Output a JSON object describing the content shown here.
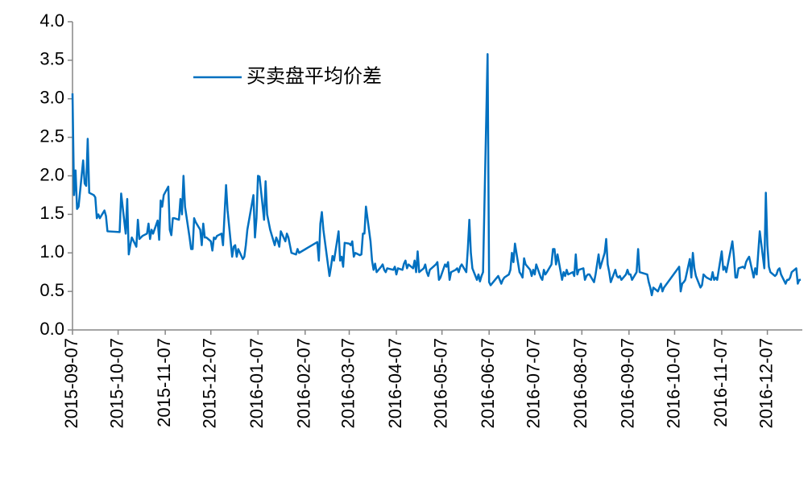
{
  "chart_data": {
    "type": "line",
    "x": [
      "2015-09-07",
      "2015-09-08",
      "2015-09-09",
      "2015-09-10",
      "2015-09-11",
      "2015-09-14",
      "2015-09-15",
      "2015-09-16",
      "2015-09-17",
      "2015-09-18",
      "2015-09-21",
      "2015-09-22",
      "2015-09-23",
      "2015-09-24",
      "2015-09-25",
      "2015-09-28",
      "2015-09-29",
      "2015-09-30",
      "2015-10-08",
      "2015-10-09",
      "2015-10-12",
      "2015-10-13",
      "2015-10-14",
      "2015-10-15",
      "2015-10-16",
      "2015-10-19",
      "2015-10-20",
      "2015-10-21",
      "2015-10-22",
      "2015-10-23",
      "2015-10-26",
      "2015-10-27",
      "2015-10-28",
      "2015-10-29",
      "2015-10-30",
      "2015-11-02",
      "2015-11-03",
      "2015-11-04",
      "2015-11-05",
      "2015-11-06",
      "2015-11-09",
      "2015-11-10",
      "2015-11-11",
      "2015-11-12",
      "2015-11-13",
      "2015-11-16",
      "2015-11-17",
      "2015-11-18",
      "2015-11-19",
      "2015-11-20",
      "2015-11-23",
      "2015-11-24",
      "2015-11-25",
      "2015-11-26",
      "2015-11-27",
      "2015-11-30",
      "2015-12-01",
      "2015-12-02",
      "2015-12-03",
      "2015-12-04",
      "2015-12-07",
      "2015-12-08",
      "2015-12-09",
      "2015-12-10",
      "2015-12-11",
      "2015-12-14",
      "2015-12-15",
      "2015-12-16",
      "2015-12-17",
      "2015-12-18",
      "2015-12-21",
      "2015-12-22",
      "2015-12-23",
      "2015-12-24",
      "2015-12-25",
      "2015-12-28",
      "2015-12-29",
      "2015-12-30",
      "2015-12-31",
      "2016-01-04",
      "2016-01-05",
      "2016-01-06",
      "2016-01-07",
      "2016-01-08",
      "2016-01-11",
      "2016-01-12",
      "2016-01-13",
      "2016-01-14",
      "2016-01-15",
      "2016-01-18",
      "2016-01-19",
      "2016-01-20",
      "2016-01-21",
      "2016-01-22",
      "2016-01-25",
      "2016-01-26",
      "2016-01-27",
      "2016-01-28",
      "2016-01-29",
      "2016-02-01",
      "2016-02-02",
      "2016-02-03",
      "2016-02-15",
      "2016-02-16",
      "2016-02-17",
      "2016-02-18",
      "2016-02-19",
      "2016-02-22",
      "2016-02-23",
      "2016-02-24",
      "2016-02-25",
      "2016-02-26",
      "2016-02-29",
      "2016-03-01",
      "2016-03-02",
      "2016-03-03",
      "2016-03-04",
      "2016-03-07",
      "2016-03-08",
      "2016-03-09",
      "2016-03-10",
      "2016-03-11",
      "2016-03-14",
      "2016-03-15",
      "2016-03-16",
      "2016-03-17",
      "2016-03-18",
      "2016-03-21",
      "2016-03-22",
      "2016-03-23",
      "2016-03-24",
      "2016-03-25",
      "2016-03-28",
      "2016-03-29",
      "2016-03-30",
      "2016-03-31",
      "2016-04-01",
      "2016-04-05",
      "2016-04-06",
      "2016-04-07",
      "2016-04-08",
      "2016-04-11",
      "2016-04-12",
      "2016-04-13",
      "2016-04-14",
      "2016-04-15",
      "2016-04-18",
      "2016-04-19",
      "2016-04-20",
      "2016-04-21",
      "2016-04-22",
      "2016-04-25",
      "2016-04-26",
      "2016-04-27",
      "2016-04-28",
      "2016-04-29",
      "2016-05-03",
      "2016-05-04",
      "2016-05-05",
      "2016-05-06",
      "2016-05-09",
      "2016-05-10",
      "2016-05-11",
      "2016-05-12",
      "2016-05-13",
      "2016-05-16",
      "2016-05-17",
      "2016-05-18",
      "2016-05-19",
      "2016-05-20",
      "2016-05-23",
      "2016-05-24",
      "2016-05-25",
      "2016-05-26",
      "2016-05-27",
      "2016-05-30",
      "2016-05-31",
      "2016-06-01",
      "2016-06-02",
      "2016-06-03",
      "2016-06-06",
      "2016-06-07",
      "2016-06-08",
      "2016-06-13",
      "2016-06-14",
      "2016-06-15",
      "2016-06-16",
      "2016-06-17",
      "2016-06-20",
      "2016-06-21",
      "2016-06-22",
      "2016-06-23",
      "2016-06-24",
      "2016-06-27",
      "2016-06-28",
      "2016-06-29",
      "2016-06-30",
      "2016-07-01",
      "2016-07-04",
      "2016-07-05",
      "2016-07-06",
      "2016-07-07",
      "2016-07-08",
      "2016-07-11",
      "2016-07-12",
      "2016-07-13",
      "2016-07-14",
      "2016-07-15",
      "2016-07-18",
      "2016-07-19",
      "2016-07-20",
      "2016-07-21",
      "2016-07-22",
      "2016-07-25",
      "2016-07-26",
      "2016-07-27",
      "2016-07-28",
      "2016-07-29",
      "2016-08-01",
      "2016-08-02",
      "2016-08-03",
      "2016-08-04",
      "2016-08-05",
      "2016-08-08",
      "2016-08-09",
      "2016-08-10",
      "2016-08-11",
      "2016-08-12",
      "2016-08-15",
      "2016-08-16",
      "2016-08-17",
      "2016-08-18",
      "2016-08-19",
      "2016-08-22",
      "2016-08-23",
      "2016-08-24",
      "2016-08-25",
      "2016-08-26",
      "2016-08-29",
      "2016-08-30",
      "2016-08-31",
      "2016-09-01",
      "2016-09-02",
      "2016-09-05",
      "2016-09-06",
      "2016-09-07",
      "2016-09-08",
      "2016-09-09",
      "2016-09-12",
      "2016-09-13",
      "2016-09-14",
      "2016-09-19",
      "2016-09-20",
      "2016-09-21",
      "2016-09-22",
      "2016-09-23",
      "2016-09-26",
      "2016-09-27",
      "2016-09-28",
      "2016-09-29",
      "2016-09-30",
      "2016-10-10",
      "2016-10-11",
      "2016-10-12",
      "2016-10-13",
      "2016-10-14",
      "2016-10-17",
      "2016-10-18",
      "2016-10-19",
      "2016-10-20",
      "2016-10-21",
      "2016-10-24",
      "2016-10-25",
      "2016-10-26",
      "2016-10-27",
      "2016-10-28",
      "2016-10-31",
      "2016-11-01",
      "2016-11-02",
      "2016-11-03",
      "2016-11-04",
      "2016-11-07",
      "2016-11-08",
      "2016-11-09",
      "2016-11-10",
      "2016-11-11",
      "2016-11-14",
      "2016-11-15",
      "2016-11-16",
      "2016-11-17",
      "2016-11-18",
      "2016-11-21",
      "2016-11-22",
      "2016-11-23",
      "2016-11-24",
      "2016-11-25",
      "2016-11-28",
      "2016-11-29",
      "2016-11-30",
      "2016-12-01",
      "2016-12-02",
      "2016-12-05",
      "2016-12-06",
      "2016-12-07",
      "2016-12-08",
      "2016-12-09",
      "2016-12-12",
      "2016-12-13",
      "2016-12-14",
      "2016-12-15",
      "2016-12-16",
      "2016-12-19",
      "2016-12-20",
      "2016-12-21",
      "2016-12-22",
      "2016-12-23",
      "2016-12-26",
      "2016-12-27",
      "2016-12-28",
      "2016-12-29"
    ],
    "series": [
      {
        "name": "买卖盘平均价差",
        "color": "#0070c0",
        "values": [
          3.07,
          1.75,
          2.07,
          1.57,
          1.6,
          2.2,
          1.9,
          1.87,
          2.48,
          1.78,
          1.75,
          1.72,
          1.45,
          1.5,
          1.45,
          1.55,
          1.48,
          1.28,
          1.27,
          1.77,
          1.25,
          1.7,
          0.98,
          1.1,
          1.2,
          1.08,
          1.43,
          1.18,
          1.2,
          1.22,
          1.25,
          1.38,
          1.18,
          1.3,
          1.25,
          1.42,
          1.17,
          1.68,
          1.6,
          1.75,
          1.86,
          1.3,
          1.23,
          1.45,
          1.45,
          1.43,
          1.7,
          1.5,
          2.0,
          1.6,
          1.2,
          1.05,
          1.05,
          1.45,
          1.4,
          1.3,
          1.1,
          1.38,
          1.2,
          1.2,
          1.15,
          1.03,
          1.2,
          1.18,
          1.22,
          1.25,
          1.1,
          1.5,
          1.88,
          1.55,
          0.95,
          1.08,
          1.1,
          0.95,
          1.05,
          0.92,
          0.95,
          1.1,
          1.3,
          1.75,
          1.2,
          1.45,
          2.0,
          1.99,
          1.43,
          1.93,
          1.5,
          1.4,
          1.3,
          1.1,
          1.2,
          1.15,
          1.08,
          1.28,
          1.15,
          1.25,
          1.2,
          1.1,
          1.0,
          0.98,
          1.05,
          1.0,
          1.14,
          0.9,
          1.38,
          1.53,
          1.3,
          0.85,
          0.7,
          0.82,
          0.96,
          0.9,
          1.28,
          0.9,
          0.95,
          0.82,
          1.13,
          1.12,
          1.1,
          1.15,
          0.95,
          1.0,
          0.97,
          0.98,
          1.25,
          1.25,
          1.6,
          1.15,
          0.9,
          0.78,
          0.86,
          0.75,
          0.82,
          0.85,
          0.78,
          0.75,
          0.8,
          0.78,
          0.82,
          0.72,
          0.8,
          0.78,
          0.86,
          0.9,
          0.8,
          0.85,
          0.8,
          0.9,
          0.75,
          1.02,
          0.75,
          0.8,
          0.85,
          0.75,
          0.7,
          0.78,
          0.85,
          0.88,
          0.65,
          0.68,
          0.85,
          0.82,
          0.88,
          0.65,
          0.75,
          0.78,
          0.8,
          0.75,
          0.82,
          0.85,
          0.75,
          1.05,
          1.43,
          1.0,
          0.8,
          0.65,
          0.72,
          0.63,
          0.7,
          0.75,
          3.58,
          0.62,
          0.58,
          0.7,
          0.65,
          0.6,
          0.65,
          0.68,
          0.72,
          0.78,
          1.0,
          0.88,
          1.12,
          0.75,
          0.72,
          0.68,
          0.93,
          0.85,
          0.78,
          0.7,
          0.78,
          0.72,
          0.85,
          0.68,
          0.65,
          0.78,
          0.72,
          0.75,
          0.85,
          1.05,
          1.05,
          0.85,
          0.98,
          0.65,
          0.75,
          0.7,
          0.78,
          0.72,
          0.75,
          0.7,
          0.98,
          0.72,
          0.78,
          0.8,
          0.65,
          0.7,
          0.72,
          0.72,
          0.62,
          0.72,
          0.85,
          0.98,
          0.8,
          1.0,
          1.18,
          0.85,
          0.75,
          0.62,
          0.78,
          0.7,
          0.68,
          0.7,
          0.65,
          0.72,
          0.78,
          0.72,
          0.72,
          0.65,
          0.75,
          1.05,
          0.75,
          0.72,
          0.62,
          0.55,
          0.45,
          0.55,
          0.5,
          0.55,
          0.6,
          0.5,
          0.55,
          0.82,
          0.5,
          0.6,
          0.62,
          0.65,
          0.92,
          0.68,
          1.0,
          0.8,
          0.7,
          0.55,
          0.58,
          0.72,
          0.7,
          0.68,
          0.65,
          0.75,
          0.65,
          0.68,
          0.65,
          1.02,
          0.78,
          0.82,
          0.75,
          0.85,
          1.15,
          0.95,
          0.68,
          0.68,
          0.8,
          0.82,
          0.8,
          0.88,
          0.92,
          0.95,
          0.68,
          0.8,
          0.72,
          1.0,
          1.28,
          0.8,
          1.78,
          1.1,
          0.82,
          0.75,
          0.7,
          0.72,
          0.78,
          0.8,
          0.72,
          0.6,
          0.65,
          0.65,
          0.68,
          0.75,
          0.8,
          0.6,
          0.65,
          0.65
        ]
      }
    ],
    "xlim": [
      "2015-09-07",
      "2016-12-30"
    ],
    "xticks": [
      "2015-09-07",
      "2015-10-07",
      "2015-11-07",
      "2015-12-07",
      "2016-01-07",
      "2016-02-07",
      "2016-03-07",
      "2016-04-07",
      "2016-05-07",
      "2016-06-07",
      "2016-07-07",
      "2016-08-07",
      "2016-09-07",
      "2016-10-07",
      "2016-11-07",
      "2016-12-07"
    ],
    "ylim": [
      0,
      4
    ],
    "yticks": [
      {
        "value": 0,
        "label": "0.0"
      },
      0.5,
      {
        "value": 1,
        "label": "1.0"
      },
      1.5,
      {
        "value": 2,
        "label": "2.0"
      },
      2.5,
      {
        "value": 3,
        "label": "3.0"
      },
      3.5,
      {
        "value": 4,
        "label": "4.0"
      }
    ],
    "grid": false,
    "legend": "upper left"
  }
}
